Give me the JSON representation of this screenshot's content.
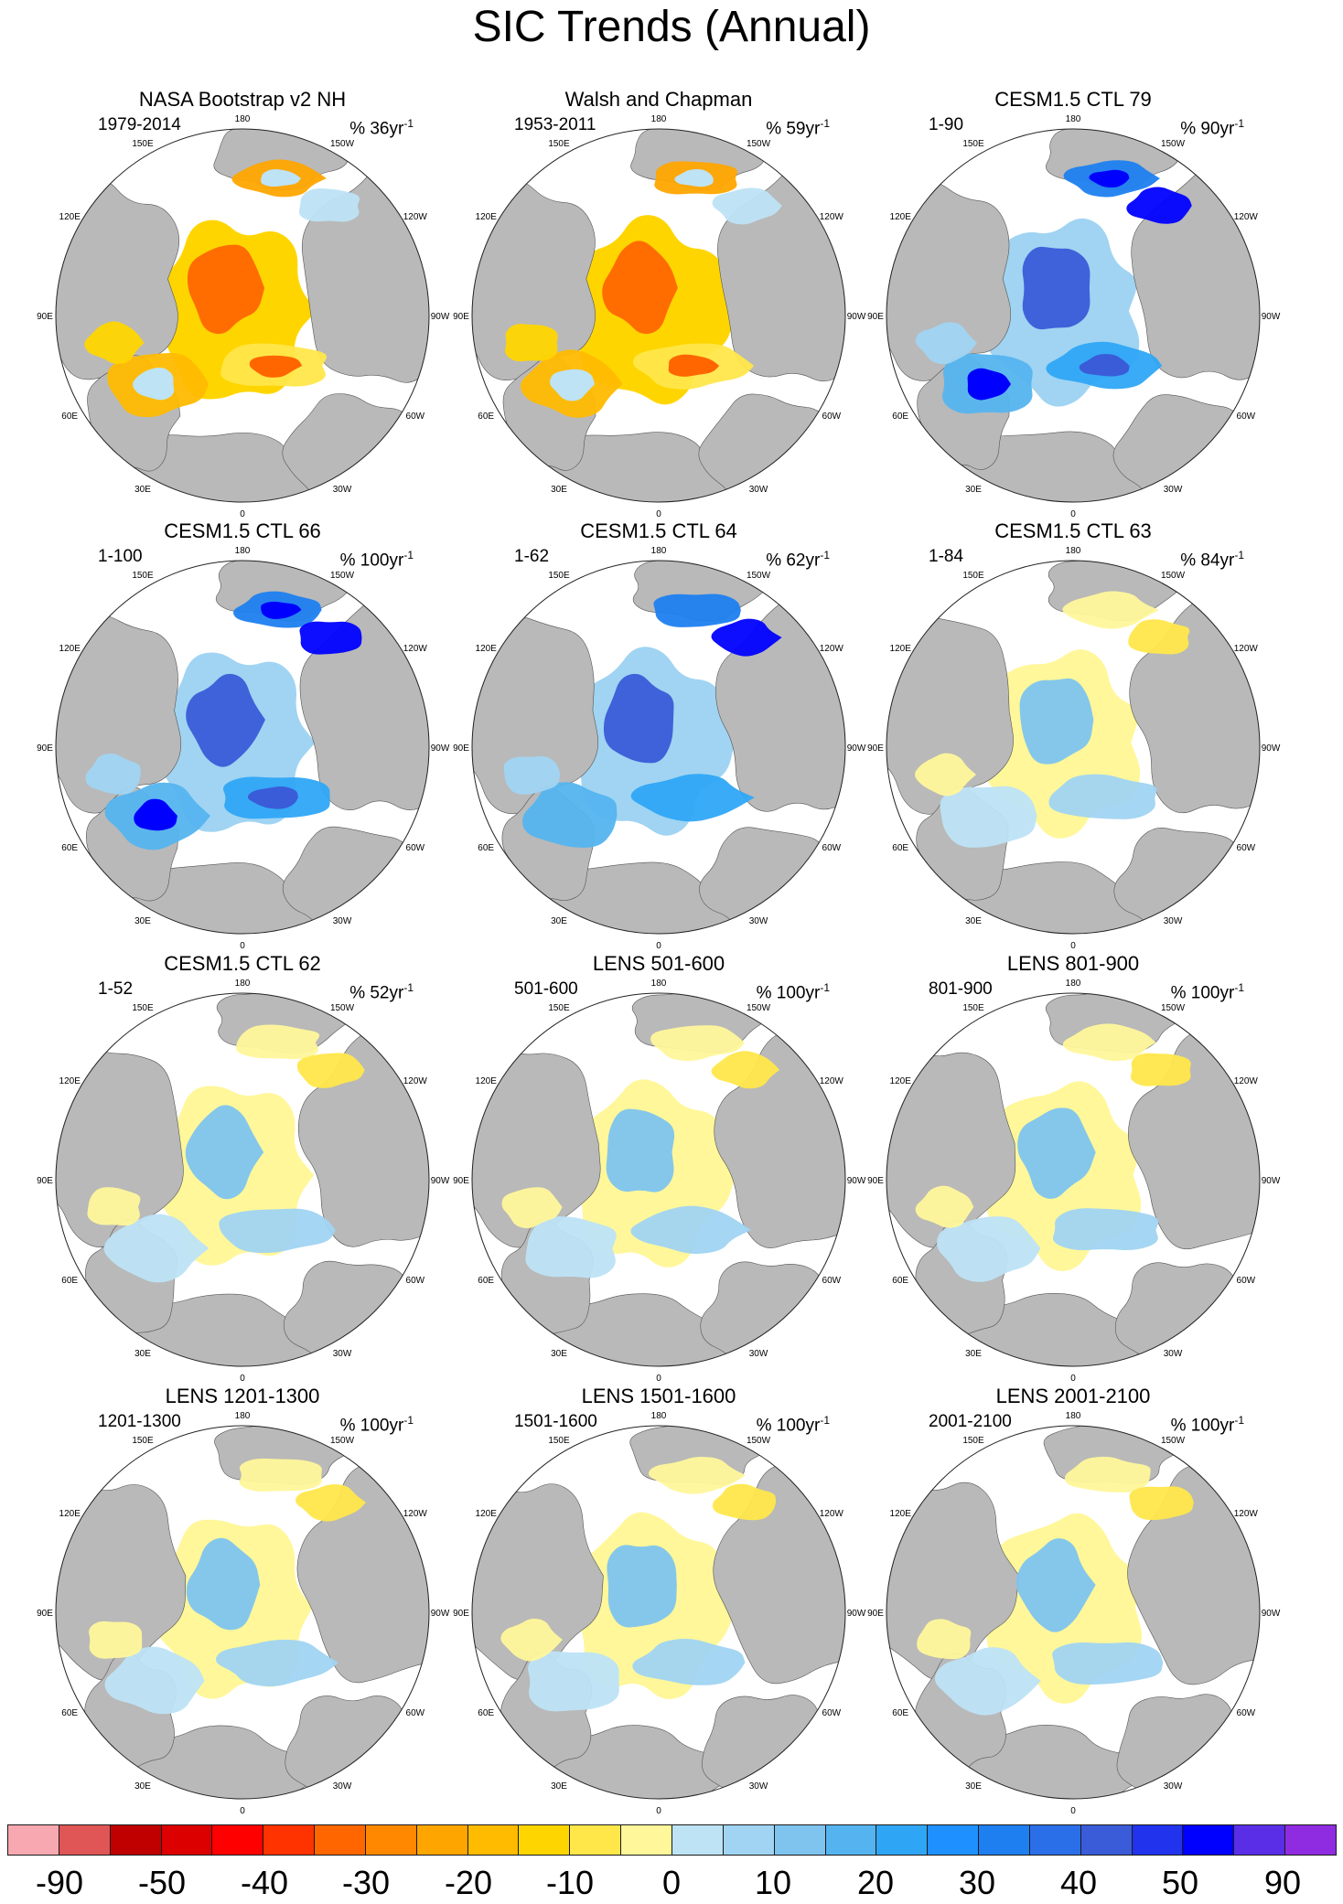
{
  "chart_data": {
    "type": "heatmap",
    "title": "SIC Trends (Annual)",
    "projection": "north polar stereographic",
    "colorbar": {
      "colors": [
        "#f7a8b0",
        "#e05555",
        "#c00000",
        "#dd0000",
        "#ff0000",
        "#ff3300",
        "#ff6600",
        "#ff8800",
        "#ffa500",
        "#ffbb00",
        "#ffd500",
        "#ffe74a",
        "#fff79a",
        "#bde3f5",
        "#a0d4f2",
        "#7ec4ef",
        "#55b4ef",
        "#2fa6f5",
        "#1e90ff",
        "#1e7ff0",
        "#2a6fe8",
        "#3a5cd8",
        "#2233ee",
        "#0000ff",
        "#5a2ee6",
        "#8f2be0"
      ],
      "tick_labels": [
        "-90",
        "-50",
        "-40",
        "-30",
        "-20",
        "-10",
        "0",
        "10",
        "20",
        "30",
        "40",
        "50",
        "90"
      ]
    },
    "geo_labels": [
      "180",
      "150W",
      "150E",
      "120W",
      "120E",
      "90W",
      "90E",
      "60W",
      "60E",
      "30W",
      "30E",
      "0"
    ],
    "panels": [
      {
        "title": "NASA Bootstrap v2 NH",
        "period": "1979-2014",
        "rate": "% 36yr",
        "rate_sup": "-1",
        "tendency": "decline",
        "intensity": "strong"
      },
      {
        "title": "Walsh and Chapman",
        "period": "1953-2011",
        "rate": "% 59yr",
        "rate_sup": "-1",
        "tendency": "decline",
        "intensity": "strong"
      },
      {
        "title": "CESM1.5 CTL 79",
        "period": "1-90",
        "rate": "% 90yr",
        "rate_sup": "-1",
        "tendency": "increase",
        "intensity": "strong"
      },
      {
        "title": "CESM1.5 CTL 66",
        "period": "1-100",
        "rate": "% 100yr",
        "rate_sup": "-1",
        "tendency": "increase",
        "intensity": "strong"
      },
      {
        "title": "CESM1.5 CTL 64",
        "period": "1-62",
        "rate": "% 62yr",
        "rate_sup": "-1",
        "tendency": "increase",
        "intensity": "moderate"
      },
      {
        "title": "CESM1.5 CTL 63",
        "period": "1-84",
        "rate": "% 84yr",
        "rate_sup": "-1",
        "tendency": "mixed",
        "intensity": "weak"
      },
      {
        "title": "CESM1.5 CTL 62",
        "period": "1-52",
        "rate": "% 52yr",
        "rate_sup": "-1",
        "tendency": "mixed",
        "intensity": "weak"
      },
      {
        "title": "LENS 501-600",
        "period": "501-600",
        "rate": "% 100yr",
        "rate_sup": "-1",
        "tendency": "mixed",
        "intensity": "weak"
      },
      {
        "title": "LENS 801-900",
        "period": "801-900",
        "rate": "% 100yr",
        "rate_sup": "-1",
        "tendency": "mixed",
        "intensity": "weak"
      },
      {
        "title": "LENS 1201-1300",
        "period": "1201-1300",
        "rate": "% 100yr",
        "rate_sup": "-1",
        "tendency": "mixed",
        "intensity": "weak"
      },
      {
        "title": "LENS 1501-1600",
        "period": "1501-1600",
        "rate": "% 100yr",
        "rate_sup": "-1",
        "tendency": "mixed",
        "intensity": "weak"
      },
      {
        "title": "LENS 2001-2100",
        "period": "2001-2100",
        "rate": "% 100yr",
        "rate_sup": "-1",
        "tendency": "mixed",
        "intensity": "weak"
      }
    ]
  }
}
